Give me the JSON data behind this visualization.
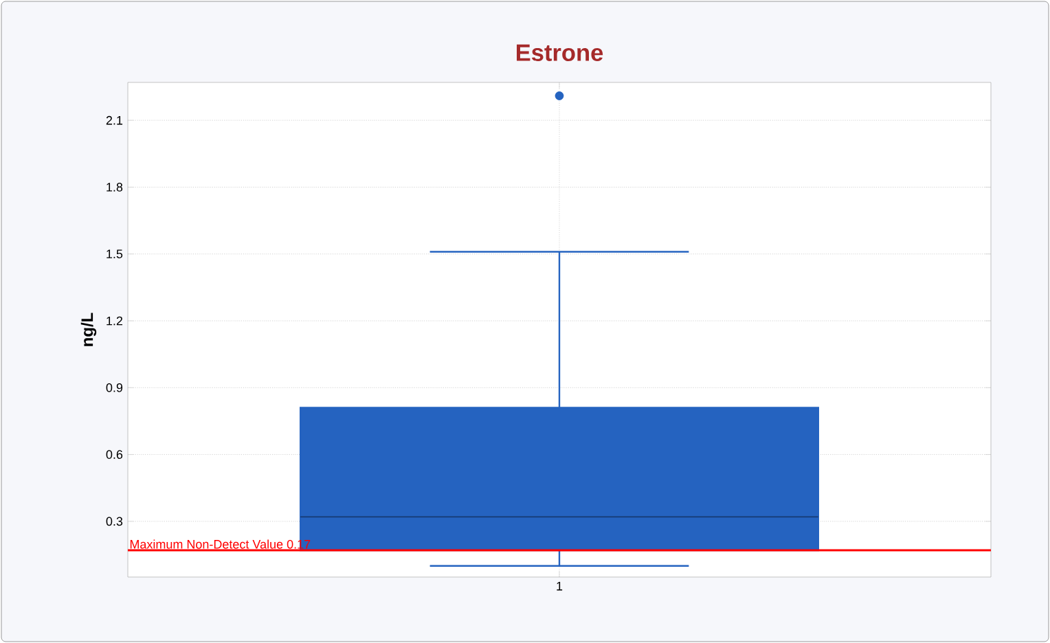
{
  "chart_data": {
    "type": "box",
    "title": "Estrone",
    "ylabel": "ng/L",
    "categories": [
      "1"
    ],
    "boxes": [
      {
        "low": 0.1,
        "q1": 0.17,
        "median": 0.32,
        "q3": 0.81,
        "high": 1.51,
        "outliers": [
          2.21
        ]
      }
    ],
    "color": "#2563c0",
    "ylim": [
      0.05,
      2.27
    ],
    "yticks": [
      0.3,
      0.6,
      0.9,
      1.2,
      1.5,
      1.8,
      2.1
    ],
    "grid": true,
    "ref_lines": [
      {
        "axis": "y",
        "value": 0.17,
        "label": "Maximum Non-Detect Value 0.17",
        "color": "#ff0000"
      }
    ]
  }
}
